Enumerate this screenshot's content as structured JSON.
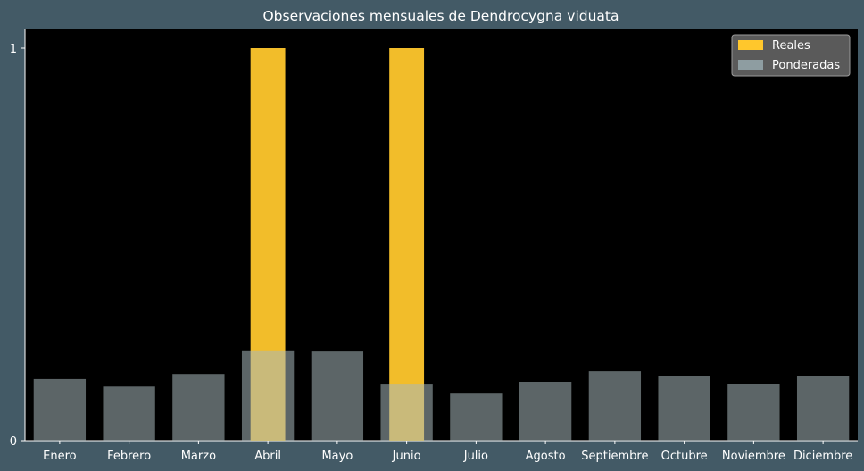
{
  "chart_data": {
    "type": "bar",
    "title": "Observaciones mensuales de Dendrocygna viduata",
    "xlabel": "",
    "ylabel": "",
    "categories": [
      "Enero",
      "Febrero",
      "Marzo",
      "Abril",
      "Mayo",
      "Junio",
      "Julio",
      "Agosto",
      "Septiembre",
      "Octubre",
      "Noviembre",
      "Diciembre"
    ],
    "series": [
      {
        "name": "Reales",
        "color": "#ffc72c",
        "values": [
          0,
          0,
          0,
          1,
          0,
          1,
          0,
          0,
          0,
          0,
          0,
          0
        ]
      },
      {
        "name": "Ponderadas",
        "color": "#a8b8bb",
        "values": [
          0.157,
          0.138,
          0.17,
          0.23,
          0.227,
          0.143,
          0.12,
          0.15,
          0.177,
          0.165,
          0.145,
          0.165
        ]
      }
    ],
    "yticks": [
      "0",
      "1"
    ],
    "ylim": [
      0,
      1.05
    ],
    "grid": false,
    "legend_position": "top-right",
    "colors": {
      "background": "#435a66",
      "plot_area": "#000000",
      "text": "#ffffff"
    }
  }
}
